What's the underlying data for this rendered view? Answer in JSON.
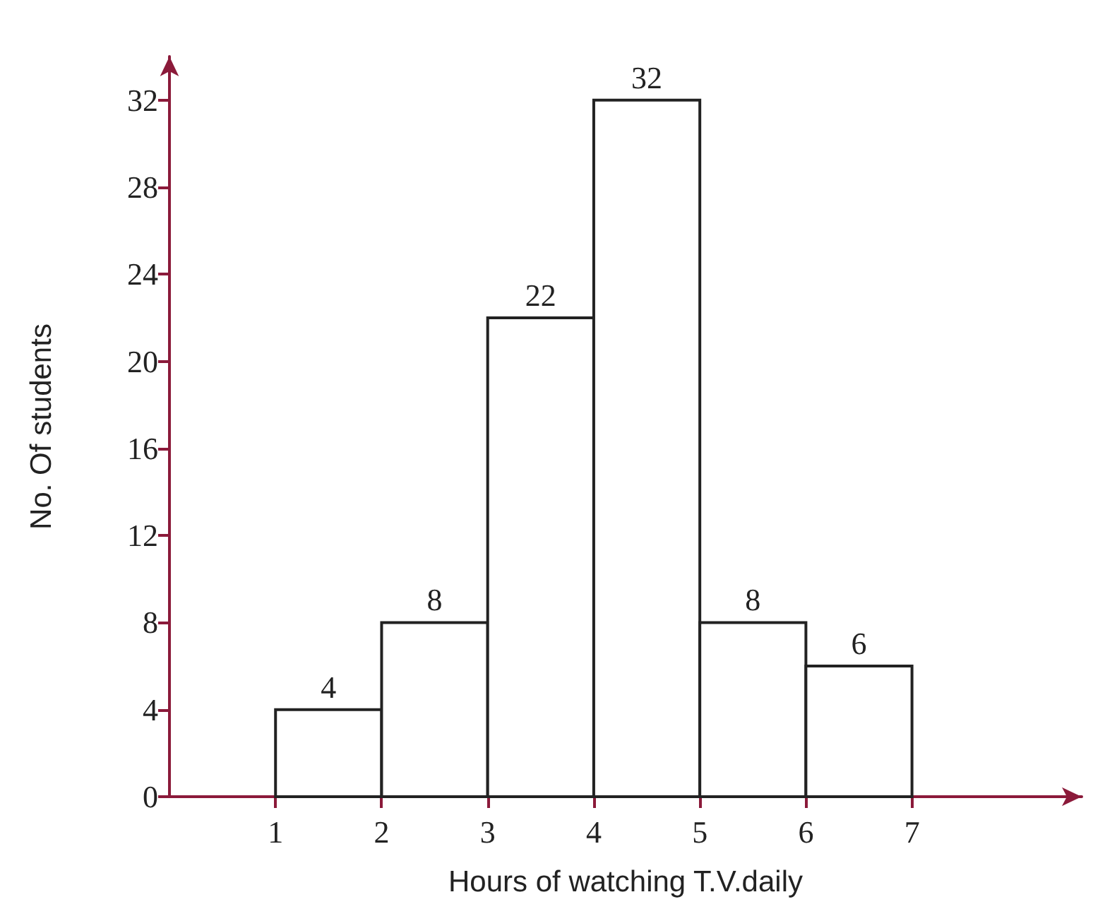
{
  "chart_data": {
    "type": "histogram",
    "xlabel": "Hours of watching T.V.daily",
    "ylabel": "No. Of students",
    "bins": [
      1,
      2,
      3,
      4,
      5,
      6,
      7
    ],
    "values": [
      4,
      8,
      22,
      32,
      8,
      6
    ],
    "color": "#ffffff",
    "data_labels": true,
    "xlim": [
      0,
      8.6
    ],
    "xticks": [
      1,
      2,
      3,
      4,
      5,
      6,
      7
    ],
    "ylim": [
      0,
      34
    ],
    "yticks": [
      0,
      4,
      8,
      12,
      16,
      20,
      24,
      28,
      32
    ],
    "grid": false
  }
}
